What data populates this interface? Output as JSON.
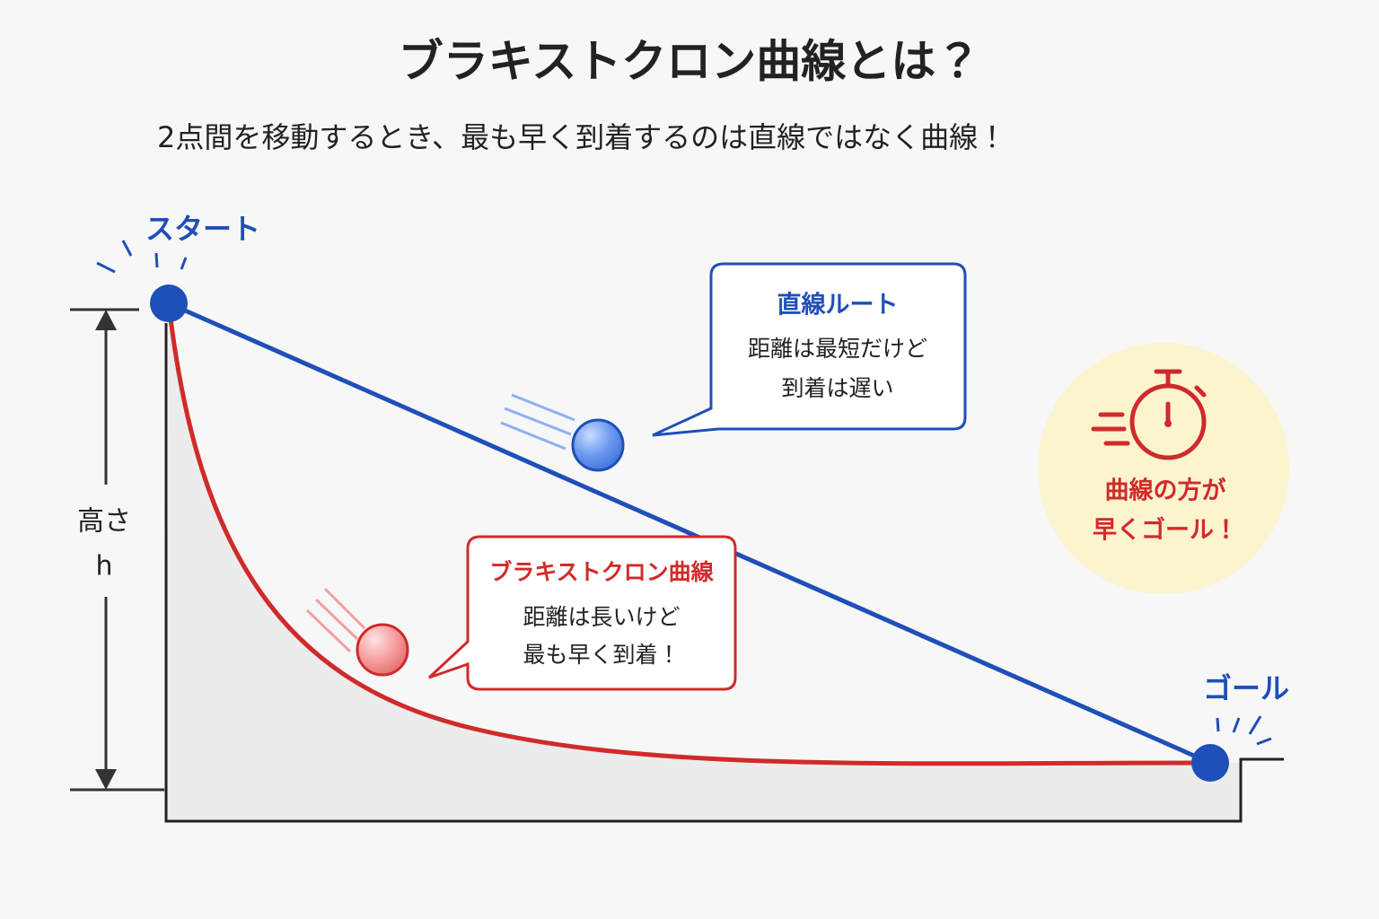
{
  "header": {
    "title": "ブラキストクロン曲線とは？",
    "subtitle": "2点間を移動するとき、最も早く到着するのは直線ではなく曲線！"
  },
  "labels": {
    "start": "スタート",
    "goal": "ゴール",
    "height": "高さ",
    "height_symbol": "h"
  },
  "straight_box": {
    "title": "直線ルート",
    "lines": [
      "距離は最短だけど",
      "到着は遅い"
    ]
  },
  "curve_box": {
    "title": "ブラキストクロン曲線",
    "lines": [
      "距離は長いけど",
      "最も早く到着！"
    ]
  },
  "badge": {
    "lines": [
      "曲線の方が",
      "早くゴール！"
    ]
  }
}
